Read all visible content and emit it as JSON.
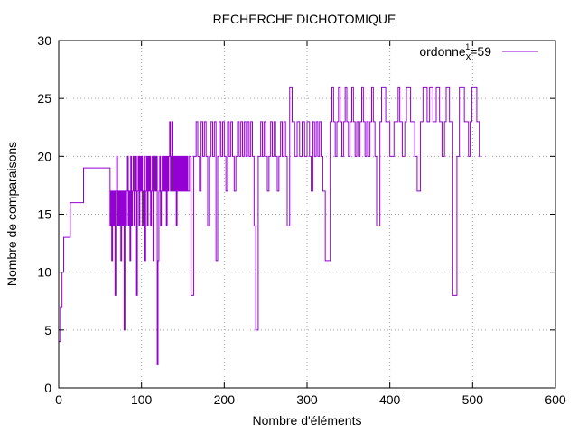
{
  "chart_data": {
    "type": "line",
    "title": "RECHERCHE DICHOTOMIQUE",
    "xlabel": "Nombre d'éléments",
    "ylabel": "Nombre de comparaisons",
    "xlim": [
      0,
      600
    ],
    "ylim": [
      0,
      30
    ],
    "xticks": [
      0,
      100,
      200,
      300,
      400,
      500,
      600
    ],
    "yticks": [
      0,
      5,
      10,
      15,
      20,
      25,
      30
    ],
    "grid": true,
    "legend_position": "top-right",
    "legend": {
      "label_main": "ordonne",
      "label_sub": "x",
      "label_sup": "1",
      "label_tail": "=59"
    },
    "colors": {
      "series": "#9400d3",
      "grid": "#a0a0a0",
      "axis": "#000000"
    },
    "series": [
      {
        "name": "ordonne_x=59",
        "step": true,
        "points": [
          [
            0,
            4
          ],
          [
            2,
            7
          ],
          [
            4,
            10
          ],
          [
            6,
            13
          ],
          [
            8,
            13
          ],
          [
            14,
            16
          ],
          [
            17,
            16
          ],
          [
            24,
            16
          ],
          [
            30,
            19
          ],
          [
            50,
            19
          ],
          [
            60,
            19
          ],
          [
            62,
            14
          ],
          [
            63,
            17
          ],
          [
            64,
            11
          ],
          [
            65,
            17
          ],
          [
            66,
            14
          ],
          [
            67,
            17
          ],
          [
            68,
            8
          ],
          [
            69,
            17
          ],
          [
            70,
            20
          ],
          [
            71,
            14
          ],
          [
            72,
            17
          ],
          [
            73,
            14
          ],
          [
            74,
            17
          ],
          [
            75,
            11
          ],
          [
            76,
            17
          ],
          [
            77,
            14
          ],
          [
            78,
            17
          ],
          [
            79,
            5
          ],
          [
            80,
            17
          ],
          [
            81,
            14
          ],
          [
            82,
            17
          ],
          [
            83,
            20
          ],
          [
            84,
            14
          ],
          [
            85,
            17
          ],
          [
            86,
            11
          ],
          [
            87,
            20
          ],
          [
            88,
            14
          ],
          [
            89,
            17
          ],
          [
            90,
            20
          ],
          [
            91,
            14
          ],
          [
            92,
            17
          ],
          [
            93,
            20
          ],
          [
            94,
            8
          ],
          [
            95,
            17
          ],
          [
            96,
            20
          ],
          [
            97,
            14
          ],
          [
            98,
            20
          ],
          [
            99,
            17
          ],
          [
            100,
            20
          ],
          [
            101,
            14
          ],
          [
            102,
            17
          ],
          [
            103,
            20
          ],
          [
            104,
            11
          ],
          [
            105,
            17
          ],
          [
            106,
            20
          ],
          [
            107,
            14
          ],
          [
            108,
            20
          ],
          [
            109,
            17
          ],
          [
            110,
            20
          ],
          [
            111,
            14
          ],
          [
            112,
            17
          ],
          [
            113,
            20
          ],
          [
            114,
            11
          ],
          [
            115,
            17
          ],
          [
            116,
            20
          ],
          [
            117,
            17
          ],
          [
            118,
            20
          ],
          [
            119,
            2
          ],
          [
            120,
            11
          ],
          [
            121,
            17
          ],
          [
            122,
            20
          ],
          [
            123,
            14
          ],
          [
            124,
            17
          ],
          [
            125,
            20
          ],
          [
            126,
            17
          ],
          [
            127,
            20
          ],
          [
            128,
            17
          ],
          [
            129,
            20
          ],
          [
            130,
            14
          ],
          [
            131,
            20
          ],
          [
            132,
            17
          ],
          [
            133,
            20
          ],
          [
            134,
            23
          ],
          [
            135,
            17
          ],
          [
            136,
            20
          ],
          [
            137,
            23
          ],
          [
            138,
            17
          ],
          [
            139,
            20
          ],
          [
            140,
            17
          ],
          [
            141,
            20
          ],
          [
            142,
            14
          ],
          [
            143,
            20
          ],
          [
            144,
            17
          ],
          [
            145,
            20
          ],
          [
            146,
            17
          ],
          [
            147,
            20
          ],
          [
            148,
            17
          ],
          [
            149,
            20
          ],
          [
            150,
            17
          ],
          [
            151,
            20
          ],
          [
            152,
            17
          ],
          [
            153,
            20
          ],
          [
            154,
            17
          ],
          [
            155,
            20
          ],
          [
            156,
            17
          ],
          [
            158,
            20
          ],
          [
            160,
            8
          ],
          [
            163,
            20
          ],
          [
            166,
            23
          ],
          [
            168,
            20
          ],
          [
            170,
            17
          ],
          [
            172,
            23
          ],
          [
            174,
            20
          ],
          [
            176,
            23
          ],
          [
            178,
            20
          ],
          [
            180,
            14
          ],
          [
            182,
            20
          ],
          [
            184,
            23
          ],
          [
            186,
            20
          ],
          [
            188,
            23
          ],
          [
            190,
            11
          ],
          [
            192,
            20
          ],
          [
            194,
            23
          ],
          [
            196,
            20
          ],
          [
            198,
            23
          ],
          [
            200,
            20
          ],
          [
            202,
            17
          ],
          [
            204,
            23
          ],
          [
            206,
            20
          ],
          [
            208,
            23
          ],
          [
            210,
            20
          ],
          [
            212,
            17
          ],
          [
            214,
            20
          ],
          [
            216,
            23
          ],
          [
            218,
            20
          ],
          [
            220,
            23
          ],
          [
            222,
            20
          ],
          [
            224,
            23
          ],
          [
            226,
            20
          ],
          [
            228,
            23
          ],
          [
            230,
            20
          ],
          [
            232,
            23
          ],
          [
            234,
            20
          ],
          [
            236,
            14
          ],
          [
            238,
            5
          ],
          [
            241,
            20
          ],
          [
            244,
            23
          ],
          [
            246,
            20
          ],
          [
            248,
            23
          ],
          [
            250,
            20
          ],
          [
            252,
            17
          ],
          [
            254,
            20
          ],
          [
            256,
            23
          ],
          [
            258,
            20
          ],
          [
            260,
            23
          ],
          [
            262,
            20
          ],
          [
            264,
            17
          ],
          [
            266,
            20
          ],
          [
            268,
            23
          ],
          [
            270,
            20
          ],
          [
            272,
            23
          ],
          [
            274,
            20
          ],
          [
            276,
            14
          ],
          [
            279,
            26
          ],
          [
            282,
            23
          ],
          [
            285,
            20
          ],
          [
            288,
            23
          ],
          [
            291,
            20
          ],
          [
            294,
            23
          ],
          [
            297,
            20
          ],
          [
            300,
            23
          ],
          [
            303,
            20
          ],
          [
            305,
            17
          ],
          [
            307,
            23
          ],
          [
            309,
            20
          ],
          [
            311,
            23
          ],
          [
            313,
            20
          ],
          [
            315,
            23
          ],
          [
            317,
            20
          ],
          [
            319,
            17
          ],
          [
            322,
            11
          ],
          [
            326,
            11
          ],
          [
            328,
            23
          ],
          [
            330,
            26
          ],
          [
            332,
            23
          ],
          [
            334,
            20
          ],
          [
            336,
            23
          ],
          [
            338,
            26
          ],
          [
            340,
            23
          ],
          [
            342,
            20
          ],
          [
            344,
            23
          ],
          [
            346,
            26
          ],
          [
            348,
            23
          ],
          [
            350,
            20
          ],
          [
            352,
            23
          ],
          [
            354,
            26
          ],
          [
            356,
            23
          ],
          [
            358,
            20
          ],
          [
            360,
            23
          ],
          [
            362,
            20
          ],
          [
            364,
            23
          ],
          [
            366,
            26
          ],
          [
            368,
            23
          ],
          [
            370,
            20
          ],
          [
            372,
            23
          ],
          [
            374,
            20
          ],
          [
            376,
            23
          ],
          [
            378,
            26
          ],
          [
            380,
            23
          ],
          [
            382,
            20
          ],
          [
            384,
            14
          ],
          [
            388,
            23
          ],
          [
            390,
            26
          ],
          [
            395,
            23
          ],
          [
            400,
            20
          ],
          [
            405,
            23
          ],
          [
            410,
            26
          ],
          [
            412,
            23
          ],
          [
            415,
            20
          ],
          [
            418,
            23
          ],
          [
            420,
            26
          ],
          [
            425,
            23
          ],
          [
            430,
            20
          ],
          [
            433,
            17
          ],
          [
            437,
            23
          ],
          [
            440,
            26
          ],
          [
            445,
            23
          ],
          [
            448,
            26
          ],
          [
            452,
            23
          ],
          [
            456,
            26
          ],
          [
            460,
            23
          ],
          [
            463,
            20
          ],
          [
            466,
            23
          ],
          [
            468,
            26
          ],
          [
            472,
            23
          ],
          [
            476,
            8
          ],
          [
            481,
            20
          ],
          [
            484,
            26
          ],
          [
            490,
            23
          ],
          [
            495,
            20
          ],
          [
            497,
            23
          ],
          [
            499,
            26
          ],
          [
            505,
            23
          ],
          [
            508,
            20
          ],
          [
            510,
            20
          ]
        ]
      }
    ]
  }
}
